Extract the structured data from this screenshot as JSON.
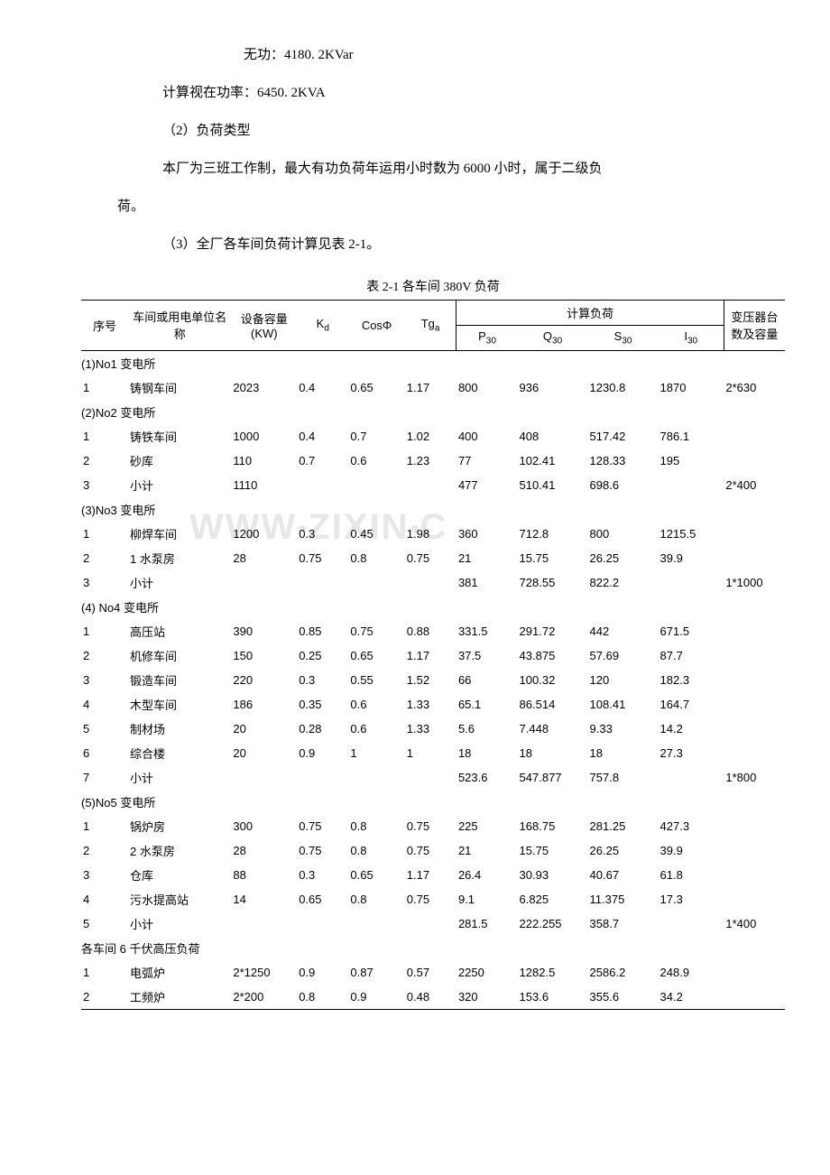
{
  "paragraphs": {
    "line1": "无功：4180. 2KVar",
    "line2": "计算视在功率：6450. 2KVA",
    "line3": "（2）负荷类型",
    "line4a": "本厂为三班工作制，最大有功负荷年运用小时数为 6000 小时，属于二级负",
    "line4b": "荷。",
    "line5": "（3）全厂各车间负荷计算见表 2-1。"
  },
  "table": {
    "title": "表 2-1 各车间 380V 负荷",
    "headers": {
      "seq": "序号",
      "name": "车间或用电单位名称",
      "capacity": "设备容量(KW)",
      "kd_main": "K",
      "kd_sub": "d",
      "cos": "CosΦ",
      "tg_main": "Tg",
      "tg_sub": "a",
      "calc_load": "计算负荷",
      "p30_main": "P",
      "p30_sub": "30",
      "q30_main": "Q",
      "q30_sub": "30",
      "s30_main": "S",
      "s30_sub": "30",
      "i30_main": "I",
      "i30_sub": "30",
      "transformer": "变压器台数及容量"
    },
    "sections": [
      {
        "label": "(1)No1 变电所",
        "rows": [
          {
            "seq": "1",
            "name": "铸钢车间",
            "cap": "2023",
            "kd": "0.4",
            "cos": "0.65",
            "tg": "1.17",
            "p30": "800",
            "q30": "936",
            "s30": "1230.8",
            "i30": "1870",
            "trans": "2*630"
          }
        ]
      },
      {
        "label": "(2)No2 变电所",
        "rows": [
          {
            "seq": "1",
            "name": "铸铁车间",
            "cap": "1000",
            "kd": "0.4",
            "cos": "0.7",
            "tg": "1.02",
            "p30": "400",
            "q30": "408",
            "s30": "517.42",
            "i30": "786.1",
            "trans": ""
          },
          {
            "seq": "2",
            "name": "砂库",
            "cap": "110",
            "kd": "0.7",
            "cos": "0.6",
            "tg": "1.23",
            "p30": "77",
            "q30": "102.41",
            "s30": "128.33",
            "i30": "195",
            "trans": ""
          },
          {
            "seq": "3",
            "name": "小计",
            "cap": "1110",
            "kd": "",
            "cos": "",
            "tg": "",
            "p30": "477",
            "q30": "510.41",
            "s30": "698.6",
            "i30": "",
            "trans": "2*400"
          }
        ]
      },
      {
        "label": "(3)No3 变电所",
        "rows": [
          {
            "seq": "1",
            "name": "柳焊车间",
            "cap": "1200",
            "kd": "0.3",
            "cos": "0.45",
            "tg": "1.98",
            "p30": "360",
            "q30": "712.8",
            "s30": "800",
            "i30": "1215.5",
            "trans": ""
          },
          {
            "seq": "2",
            "name": "1 水泵房",
            "cap": "28",
            "kd": "0.75",
            "cos": "0.8",
            "tg": "0.75",
            "p30": "21",
            "q30": "15.75",
            "s30": "26.25",
            "i30": "39.9",
            "trans": ""
          },
          {
            "seq": "3",
            "name": "小计",
            "cap": "",
            "kd": "",
            "cos": "",
            "tg": "",
            "p30": "381",
            "q30": "728.55",
            "s30": "822.2",
            "i30": "",
            "trans": "1*1000"
          }
        ]
      },
      {
        "label": "(4) No4 变电所",
        "rows": [
          {
            "seq": "1",
            "name": "高压站",
            "cap": "390",
            "kd": "0.85",
            "cos": "0.75",
            "tg": "0.88",
            "p30": "331.5",
            "q30": "291.72",
            "s30": "442",
            "i30": "671.5",
            "trans": ""
          },
          {
            "seq": "2",
            "name": "机修车间",
            "cap": "150",
            "kd": "0.25",
            "cos": "0.65",
            "tg": "1.17",
            "p30": "37.5",
            "q30": "43.875",
            "s30": "57.69",
            "i30": "87.7",
            "trans": ""
          },
          {
            "seq": "3",
            "name": "锻造车间",
            "cap": "220",
            "kd": "0.3",
            "cos": "0.55",
            "tg": "1.52",
            "p30": "66",
            "q30": "100.32",
            "s30": "120",
            "i30": "182.3",
            "trans": ""
          },
          {
            "seq": "4",
            "name": "木型车间",
            "cap": "186",
            "kd": "0.35",
            "cos": "0.6",
            "tg": "1.33",
            "p30": "65.1",
            "q30": "86.514",
            "s30": "108.41",
            "i30": "164.7",
            "trans": ""
          },
          {
            "seq": "5",
            "name": "制材场",
            "cap": "20",
            "kd": "0.28",
            "cos": "0.6",
            "tg": "1.33",
            "p30": "5.6",
            "q30": "7.448",
            "s30": "9.33",
            "i30": "14.2",
            "trans": ""
          },
          {
            "seq": "6",
            "name": "综合楼",
            "cap": "20",
            "kd": "0.9",
            "cos": "1",
            "tg": "1",
            "p30": "18",
            "q30": "18",
            "s30": "18",
            "i30": "27.3",
            "trans": ""
          },
          {
            "seq": "7",
            "name": "小计",
            "cap": "",
            "kd": "",
            "cos": "",
            "tg": "",
            "p30": "523.6",
            "q30": "547.877",
            "s30": "757.8",
            "i30": "",
            "trans": "1*800"
          }
        ]
      },
      {
        "label": "(5)No5 变电所",
        "rows": [
          {
            "seq": "1",
            "name": "锅炉房",
            "cap": "300",
            "kd": "0.75",
            "cos": "0.8",
            "tg": "0.75",
            "p30": "225",
            "q30": "168.75",
            "s30": "281.25",
            "i30": "427.3",
            "trans": ""
          },
          {
            "seq": "2",
            "name": "2 水泵房",
            "cap": "28",
            "kd": "0.75",
            "cos": "0.8",
            "tg": "0.75",
            "p30": "21",
            "q30": "15.75",
            "s30": "26.25",
            "i30": "39.9",
            "trans": ""
          },
          {
            "seq": "3",
            "name": "仓库",
            "cap": "88",
            "kd": "0.3",
            "cos": "0.65",
            "tg": "1.17",
            "p30": "26.4",
            "q30": "30.93",
            "s30": "40.67",
            "i30": "61.8",
            "trans": ""
          },
          {
            "seq": "4",
            "name": "污水提高站",
            "cap": "14",
            "kd": "0.65",
            "cos": "0.8",
            "tg": "0.75",
            "p30": "9.1",
            "q30": "6.825",
            "s30": "11.375",
            "i30": "17.3",
            "trans": ""
          },
          {
            "seq": "5",
            "name": "小计",
            "cap": "",
            "kd": "",
            "cos": "",
            "tg": "",
            "p30": "281.5",
            "q30": "222.255",
            "s30": "358.7",
            "i30": "",
            "trans": "1*400"
          }
        ]
      },
      {
        "label": "各车间 6 千伏高压负荷",
        "rows": [
          {
            "seq": "1",
            "name": "电弧炉",
            "cap": "2*1250",
            "kd": "0.9",
            "cos": "0.87",
            "tg": "0.57",
            "p30": "2250",
            "q30": "1282.5",
            "s30": "2586.2",
            "i30": "248.9",
            "trans": ""
          },
          {
            "seq": "2",
            "name": "工频炉",
            "cap": "2*200",
            "kd": "0.8",
            "cos": "0.9",
            "tg": "0.48",
            "p30": "320",
            "q30": "153.6",
            "s30": "355.6",
            "i30": "34.2",
            "trans": ""
          }
        ]
      }
    ]
  },
  "watermark": "WWW.ZIXIN.C"
}
